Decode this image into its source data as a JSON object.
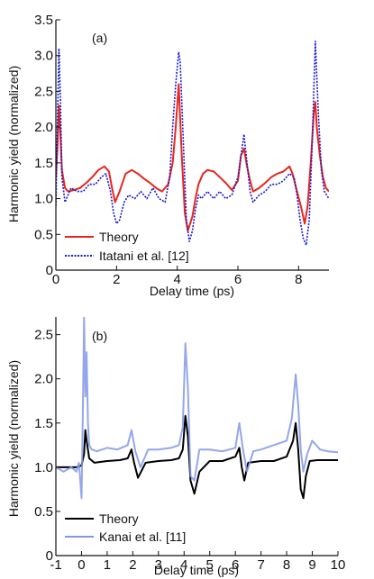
{
  "chart_data": [
    {
      "type": "line",
      "panel_label": "(a)",
      "xlabel": "Delay time (ps)",
      "ylabel": "Harmonic yield (normalized)",
      "xlim": [
        0,
        9
      ],
      "ylim": [
        0,
        3.5
      ],
      "xticks": [
        0,
        2,
        4,
        6,
        8
      ],
      "yticks": [
        0,
        0.5,
        1.0,
        1.5,
        2.0,
        2.5,
        3.0,
        3.5
      ],
      "xtick_labels": [
        "0",
        "2",
        "4",
        "6",
        "8"
      ],
      "ytick_labels": [
        "0",
        "0.5",
        "1.0",
        "1.5",
        "2.0",
        "2.5",
        "3.0",
        "3.5"
      ],
      "grid": false,
      "legend_position": "bottom-left",
      "series": [
        {
          "name": "Theory",
          "color": "#e8261f",
          "style": "solid",
          "x": [
            0,
            0.05,
            0.1,
            0.15,
            0.2,
            0.3,
            0.4,
            0.6,
            0.8,
            1.0,
            1.2,
            1.4,
            1.6,
            1.75,
            1.85,
            1.95,
            2.1,
            2.3,
            2.5,
            2.7,
            2.9,
            3.1,
            3.3,
            3.5,
            3.7,
            3.85,
            3.95,
            4.05,
            4.15,
            4.25,
            4.35,
            4.5,
            4.6,
            4.7,
            4.85,
            5.0,
            5.2,
            5.4,
            5.6,
            5.8,
            6.0,
            6.1,
            6.2,
            6.3,
            6.4,
            6.5,
            6.7,
            6.9,
            7.1,
            7.3,
            7.5,
            7.7,
            7.8,
            7.95,
            8.1,
            8.2,
            8.3,
            8.4,
            8.5,
            8.55,
            8.6,
            8.7,
            8.8,
            8.9,
            9.0
          ],
          "y": [
            1.3,
            1.7,
            2.3,
            1.9,
            1.4,
            1.15,
            1.1,
            1.12,
            1.15,
            1.22,
            1.3,
            1.4,
            1.45,
            1.38,
            1.15,
            0.95,
            1.1,
            1.35,
            1.4,
            1.35,
            1.28,
            1.22,
            1.15,
            1.1,
            1.2,
            1.5,
            2.0,
            2.6,
            1.6,
            0.8,
            0.55,
            0.75,
            1.0,
            1.2,
            1.35,
            1.4,
            1.38,
            1.3,
            1.22,
            1.12,
            1.25,
            1.6,
            1.7,
            1.45,
            1.25,
            1.1,
            1.15,
            1.22,
            1.3,
            1.35,
            1.38,
            1.45,
            1.35,
            1.1,
            0.85,
            0.65,
            0.9,
            1.5,
            2.2,
            2.35,
            2.0,
            1.6,
            1.3,
            1.15,
            1.1
          ]
        },
        {
          "name": "Itatani et al. [12]",
          "color": "#1b1bcc",
          "style": "dotted",
          "x": [
            0,
            0.05,
            0.1,
            0.15,
            0.2,
            0.3,
            0.4,
            0.5,
            0.7,
            0.9,
            1.1,
            1.3,
            1.5,
            1.65,
            1.8,
            1.9,
            2.0,
            2.1,
            2.25,
            2.4,
            2.6,
            2.8,
            3.0,
            3.2,
            3.4,
            3.6,
            3.75,
            3.85,
            3.95,
            4.05,
            4.1,
            4.2,
            4.3,
            4.4,
            4.5,
            4.6,
            4.7,
            4.8,
            5.0,
            5.2,
            5.4,
            5.6,
            5.8,
            6.0,
            6.1,
            6.2,
            6.3,
            6.4,
            6.5,
            6.7,
            6.9,
            7.1,
            7.3,
            7.5,
            7.7,
            7.85,
            7.95,
            8.05,
            8.15,
            8.25,
            8.35,
            8.45,
            8.55,
            8.65,
            8.75,
            8.85,
            9.0
          ],
          "y": [
            0.9,
            2.0,
            3.1,
            2.4,
            1.3,
            0.95,
            1.05,
            1.15,
            1.1,
            1.1,
            1.2,
            1.2,
            1.3,
            1.35,
            1.1,
            0.8,
            0.65,
            0.7,
            0.95,
            1.05,
            1.0,
            1.1,
            1.0,
            1.15,
            1.0,
            0.95,
            1.3,
            2.0,
            2.6,
            3.05,
            2.9,
            1.8,
            0.7,
            0.4,
            0.55,
            0.85,
            1.05,
            1.0,
            1.1,
            1.0,
            1.1,
            1.0,
            1.05,
            1.3,
            1.6,
            1.9,
            1.5,
            1.1,
            0.95,
            1.05,
            1.1,
            1.2,
            1.2,
            1.25,
            1.35,
            1.3,
            1.05,
            0.7,
            0.45,
            0.35,
            0.7,
            1.8,
            3.2,
            2.2,
            1.4,
            1.1,
            1.0
          ]
        }
      ]
    },
    {
      "type": "line",
      "panel_label": "(b)",
      "xlabel": "Delay time (ps)",
      "ylabel": "Harmonic yield (normalized)",
      "xlim": [
        -1,
        10
      ],
      "ylim": [
        0,
        2.7
      ],
      "xticks": [
        -1,
        0,
        1,
        2,
        3,
        4,
        5,
        6,
        7,
        8,
        9,
        10
      ],
      "yticks": [
        0,
        0.5,
        1.0,
        1.5,
        2.0,
        2.5
      ],
      "xtick_labels": [
        "-1",
        "0",
        "1",
        "2",
        "3",
        "4",
        "5",
        "6",
        "7",
        "8",
        "9",
        "10"
      ],
      "ytick_labels": [
        "0",
        "0.5",
        "1.0",
        "1.5",
        "2.0",
        "2.5"
      ],
      "grid": false,
      "legend_position": "bottom-left",
      "series": [
        {
          "name": "Theory",
          "color": "#000000",
          "style": "solid",
          "x": [
            -1,
            -0.5,
            -0.2,
            0.0,
            0.1,
            0.15,
            0.2,
            0.3,
            0.5,
            1.0,
            1.5,
            1.8,
            1.95,
            2.05,
            2.2,
            2.5,
            3.0,
            3.5,
            3.8,
            3.95,
            4.05,
            4.15,
            4.25,
            4.4,
            4.6,
            5.0,
            5.5,
            6.0,
            6.15,
            6.25,
            6.35,
            6.5,
            7.0,
            7.5,
            8.0,
            8.25,
            8.35,
            8.45,
            8.55,
            8.65,
            8.75,
            8.9,
            9.2,
            9.5,
            10.0
          ],
          "y": [
            1.0,
            1.0,
            1.0,
            1.02,
            1.15,
            1.42,
            1.3,
            1.1,
            1.05,
            1.07,
            1.08,
            1.1,
            1.2,
            1.05,
            0.88,
            1.05,
            1.07,
            1.08,
            1.1,
            1.2,
            1.58,
            1.35,
            0.85,
            0.7,
            0.95,
            1.07,
            1.07,
            1.12,
            1.22,
            1.0,
            0.85,
            1.05,
            1.07,
            1.07,
            1.12,
            1.3,
            1.5,
            1.2,
            0.75,
            0.65,
            0.9,
            1.07,
            1.08,
            1.08,
            1.08
          ]
        },
        {
          "name": "Kanai et al. [11]",
          "color": "#8296e8",
          "style": "solid",
          "x": [
            -1,
            -0.7,
            -0.4,
            -0.2,
            -0.1,
            0.0,
            0.05,
            0.1,
            0.15,
            0.2,
            0.25,
            0.3,
            0.4,
            0.6,
            1.0,
            1.4,
            1.8,
            1.95,
            2.1,
            2.3,
            2.6,
            3.0,
            3.5,
            3.8,
            3.95,
            4.05,
            4.15,
            4.25,
            4.4,
            4.6,
            5.0,
            5.5,
            6.0,
            6.15,
            6.3,
            6.45,
            6.7,
            7.0,
            7.5,
            8.0,
            8.2,
            8.35,
            8.45,
            8.55,
            8.65,
            8.8,
            9.0,
            9.3,
            9.6,
            10.0
          ],
          "y": [
            1.0,
            0.95,
            1.0,
            0.95,
            1.05,
            0.65,
            1.6,
            2.7,
            1.8,
            2.3,
            1.5,
            1.25,
            1.2,
            1.18,
            1.22,
            1.2,
            1.25,
            1.42,
            1.18,
            1.0,
            1.2,
            1.2,
            1.22,
            1.25,
            1.45,
            2.4,
            1.9,
            0.9,
            0.85,
            1.2,
            1.2,
            1.18,
            1.22,
            1.5,
            1.2,
            0.95,
            1.18,
            1.2,
            1.25,
            1.3,
            1.55,
            2.05,
            1.7,
            1.2,
            0.95,
            1.15,
            1.3,
            1.2,
            1.18,
            1.17
          ]
        }
      ]
    }
  ]
}
